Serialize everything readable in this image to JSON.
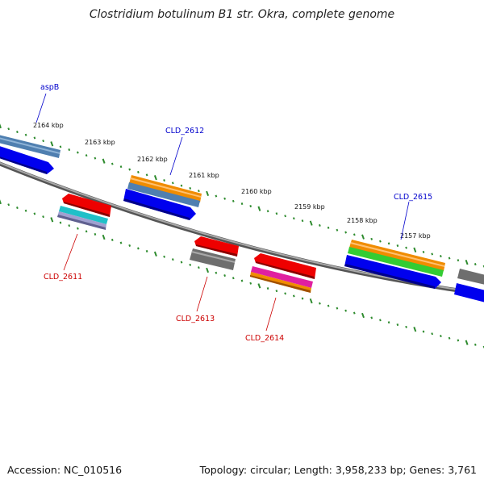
{
  "title": "Clostridium botulinum B1 str. Okra, complete genome",
  "footer": {
    "accession": "Accession: NC_010516",
    "stats": "Topology: circular; Length: 3,958,233 bp; Genes: 3,761"
  },
  "colors": {
    "backbone": "#8c8c8c",
    "tick": "#2e8b2e",
    "forward_label": "#0000cc",
    "reverse_label": "#cc0000",
    "blue_arrow": "#0000ee",
    "red_arrow": "#ee0000",
    "gray_arrow": "#6e6e6e",
    "steel_track": "#4f7fb0",
    "orange_track": "#f08c00",
    "green_track": "#33cc33",
    "cyan_track": "#20c0c8",
    "magenta_track": "#e020a0"
  },
  "scale_labels": [
    "2164 kbp",
    "2163 kbp",
    "2162 kbp",
    "2161 kbp",
    "2160 kbp",
    "2159 kbp",
    "2158 kbp",
    "2157 kbp"
  ],
  "genes": {
    "forward": [
      {
        "name": "aspB",
        "color": "#0000cc"
      },
      {
        "name": "CLD_2612",
        "color": "#0000cc"
      },
      {
        "name": "CLD_2615",
        "color": "#0000cc"
      }
    ],
    "reverse": [
      {
        "name": "CLD_2611",
        "color": "#cc0000"
      },
      {
        "name": "CLD_2613",
        "color": "#cc0000"
      },
      {
        "name": "CLD_2614",
        "color": "#cc0000"
      }
    ]
  }
}
